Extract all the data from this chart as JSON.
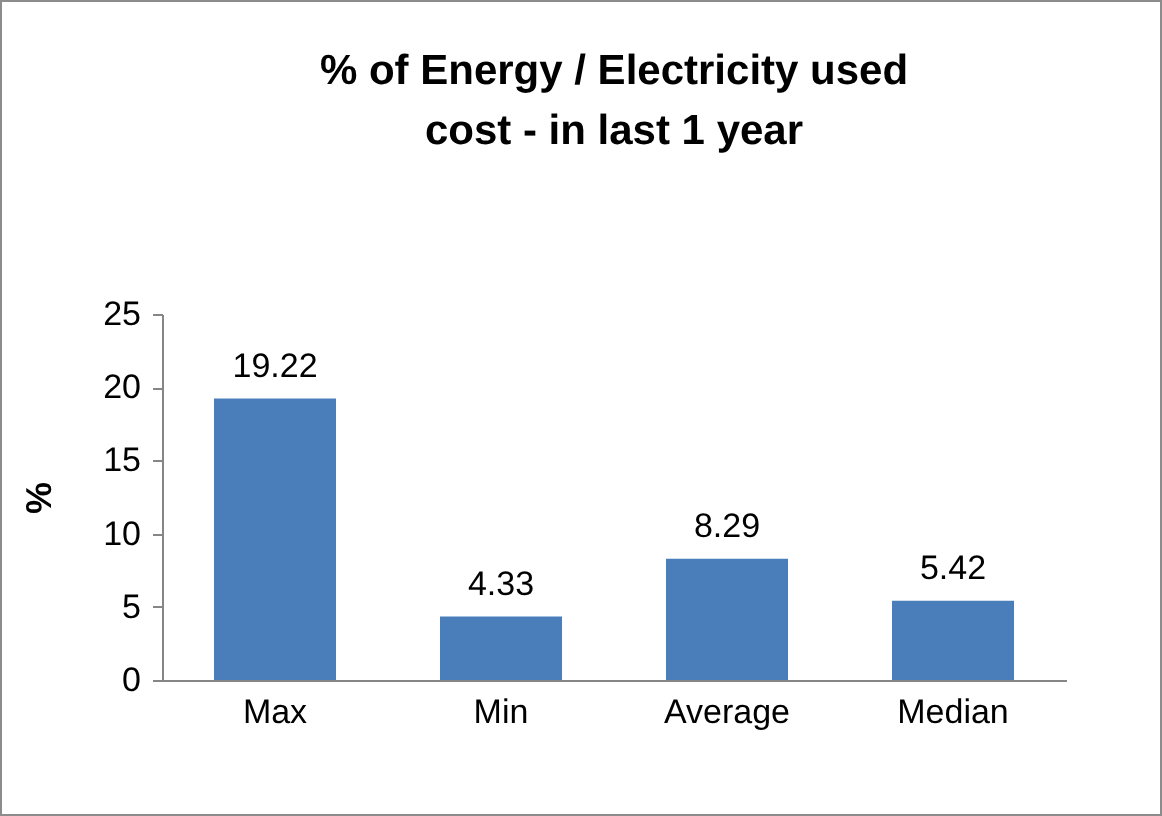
{
  "chart_data": {
    "type": "bar",
    "title": "% of Energy / Electricity  used\ncost - in last 1 year",
    "categories": [
      "Max",
      "Min",
      "Average",
      "Median"
    ],
    "values": [
      19.22,
      4.33,
      8.29,
      5.42
    ],
    "color": "#4a7ebb",
    "ylabel": "%",
    "ylim": [
      0,
      25
    ],
    "yticks": [
      0,
      5,
      10,
      15,
      20,
      25
    ],
    "grid": false,
    "data_labels": true
  }
}
